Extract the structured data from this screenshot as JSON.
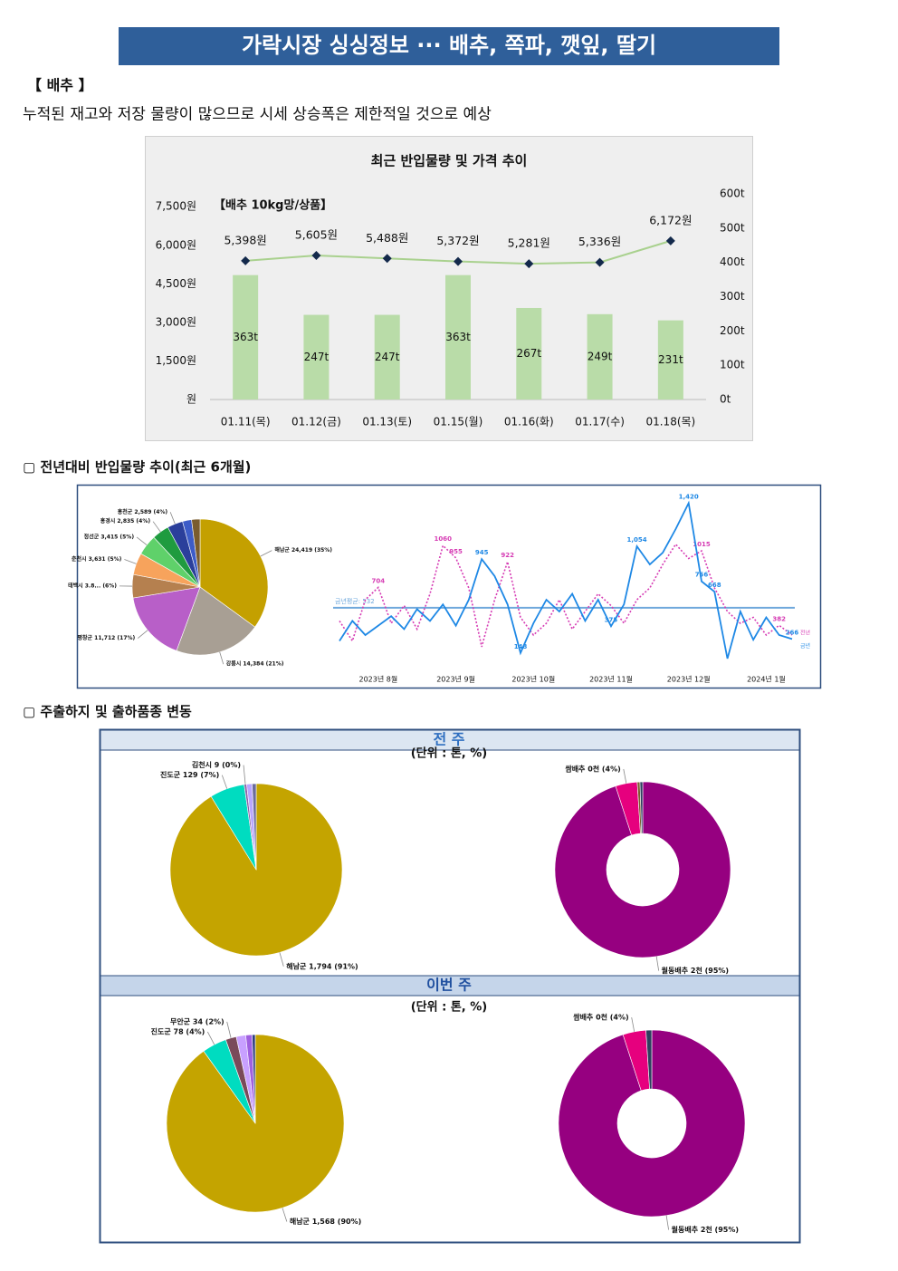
{
  "title": "가락시장 싱싱정보 ··· 배추, 쪽파, 깻잎, 딸기",
  "section": "【 배추 】",
  "summary": "누적된 재고와 저장 물량이 많으므로 시세 상승폭은 제한적일 것으로 예상",
  "heading_trend": "▢ 전년대비 반입물량 추이(최근 6개월)",
  "heading_origin": "▢ 주출하지 및 출하품종 변동",
  "panels": [
    "전 주",
    "이번 주"
  ],
  "chart_data": [
    {
      "type": "combo",
      "title": "최근 반입물량 및 가격 추이",
      "annotation": "【배추 10kg망/상품】",
      "categories": [
        "01.11(목)",
        "01.12(금)",
        "01.13(토)",
        "01.15(월)",
        "01.16(화)",
        "01.17(수)",
        "01.18(목)"
      ],
      "series": [
        {
          "type": "bar",
          "axis": "y2",
          "color": "#b9dca8",
          "values": [
            363,
            247,
            247,
            363,
            267,
            249,
            231
          ],
          "value_labels": [
            "363t",
            "247t",
            "247t",
            "363t",
            "267t",
            "249t",
            "231t"
          ]
        },
        {
          "type": "line",
          "color": "#a9d18e",
          "marker_color": "#13294b",
          "values": [
            5398,
            5605,
            5488,
            5372,
            5281,
            5336,
            6172
          ],
          "value_labels": [
            "5,398원",
            "5,605원",
            "5,488원",
            "5,372원",
            "5,281원",
            "5,336원",
            "6,172원"
          ]
        }
      ],
      "ylim": [
        0,
        8000
      ],
      "yticks": [
        {
          "value": 0,
          "label": "원"
        },
        {
          "value": 1500,
          "label": "1,500원"
        },
        {
          "value": 3000,
          "label": "3,000원"
        },
        {
          "value": 4500,
          "label": "4,500원"
        },
        {
          "value": 6000,
          "label": "6,000원"
        },
        {
          "value": 7500,
          "label": "7,500원"
        }
      ],
      "y2lim": [
        0,
        600
      ],
      "y2ticks": [
        {
          "value": 0,
          "label": "0t"
        },
        {
          "value": 100,
          "label": "100t"
        },
        {
          "value": 200,
          "label": "200t"
        },
        {
          "value": 300,
          "label": "300t"
        },
        {
          "value": 400,
          "label": "400t"
        },
        {
          "value": 500,
          "label": "500t"
        },
        {
          "value": 600,
          "label": "600t"
        }
      ]
    },
    {
      "type": "pie",
      "categories": [
        "해남군 24,419 (35%)",
        "강릉시 14,384 (21%)",
        "평창군 11,712 (17%)",
        "태백시 3.8... (6%)",
        "춘천시 3,631 (5%)",
        "정선군 3,415 (5%)",
        "홍경시 2,835 (4%)",
        "홍천군 2,589 (4%)",
        null,
        null
      ],
      "values": [
        24419,
        14384,
        11712,
        3850,
        3631,
        3415,
        2835,
        2589,
        1500,
        1400
      ],
      "colors": [
        "#c4a000",
        "#a89f94",
        "#b85fc8",
        "#b5804f",
        "#f7a35c",
        "#5fd16a",
        "#1f9b3f",
        "#2b3f9b",
        "#3d5cc8",
        "#7a5c2e"
      ]
    },
    {
      "type": "line",
      "categories": [
        null,
        null,
        null,
        "2023년 8월",
        null,
        null,
        null,
        null,
        null,
        "2023년 9월",
        null,
        null,
        null,
        null,
        null,
        "2023년 10월",
        null,
        null,
        null,
        null,
        null,
        "2023년 11월",
        null,
        null,
        null,
        null,
        null,
        "2023년 12월",
        null,
        null,
        null,
        null,
        null,
        "2024년 1월",
        null,
        null
      ],
      "ylim": [
        0,
        1500
      ],
      "reference": {
        "value": 532,
        "label": "금년평균: 532",
        "color": "#6fa8dc"
      },
      "series": [
        {
          "name": "전년",
          "color": "#d63cb4",
          "dash": true,
          "values": [
            420,
            250,
            600,
            704,
            400,
            550,
            350,
            650,
            1060,
            955,
            700,
            200,
            600,
            922,
            450,
            300,
            400,
            600,
            350,
            500,
            650,
            550,
            400,
            600,
            700,
            900,
            1071,
            950,
            1015,
            700,
            500,
            400,
            450,
            300,
            382,
            300
          ],
          "value_labels": [
            null,
            null,
            null,
            "704",
            null,
            null,
            null,
            null,
            "1060",
            "955",
            null,
            null,
            null,
            "922",
            null,
            null,
            null,
            null,
            null,
            null,
            null,
            null,
            null,
            null,
            null,
            null,
            null,
            null,
            "1015",
            null,
            null,
            null,
            null,
            null,
            "382",
            null
          ]
        },
        {
          "name": "금년",
          "color": "#1e88e5",
          "dash": false,
          "values": [
            250,
            420,
            300,
            380,
            460,
            350,
            520,
            420,
            560,
            380,
            600,
            945,
            800,
            560,
            148,
            400,
            600,
            500,
            650,
            420,
            600,
            375,
            560,
            1054,
            900,
            1000,
            1200,
            1420,
            756,
            668,
            100,
            500,
            260,
            450,
            300,
            266
          ],
          "value_labels": [
            null,
            null,
            null,
            null,
            null,
            null,
            null,
            null,
            null,
            null,
            null,
            "945",
            null,
            null,
            "148",
            null,
            null,
            null,
            null,
            null,
            null,
            "375",
            null,
            "1,054",
            null,
            null,
            null,
            "1,420",
            "756",
            "668",
            null,
            null,
            null,
            null,
            null,
            "266"
          ]
        }
      ]
    },
    {
      "type": "pie",
      "subtitle": "(단위 : 톤, %)",
      "categories": [
        "해남군 1,794 (91%)",
        "진도군 129 (7%)",
        "김천시 9 (0%)",
        null,
        null
      ],
      "values": [
        1794,
        129,
        9,
        20,
        15
      ],
      "colors": [
        "#c4a400",
        "#00dcc0",
        "#8e5ea8",
        "#b9a6ff",
        "#6c6c9c"
      ]
    },
    {
      "type": "donut",
      "categories": [
        "월동배추 2천 (95%)",
        "쌈배추 0천 (4%)",
        null,
        null
      ],
      "values": [
        95,
        4,
        0.5,
        0.5
      ],
      "colors": [
        "#960080",
        "#e6007e",
        "#7a5c2e",
        "#2f3f5f"
      ]
    },
    {
      "type": "pie",
      "subtitle": "(단위 : 톤, %)",
      "categories": [
        "해남군 1,568 (90%)",
        "진도군 78 (4%)",
        "무안군 34 (2%)",
        null,
        null,
        null
      ],
      "values": [
        1568,
        78,
        34,
        30,
        20,
        10
      ],
      "colors": [
        "#c4a400",
        "#00dcc0",
        "#7a4a5a",
        "#c8a0ff",
        "#a060e0",
        "#304080"
      ]
    },
    {
      "type": "donut",
      "categories": [
        "월동배추 2천 (95%)",
        "쌈배추 0천 (4%)",
        null
      ],
      "values": [
        95,
        4,
        1
      ],
      "colors": [
        "#960080",
        "#e6007e",
        "#2f3f5f"
      ]
    }
  ]
}
